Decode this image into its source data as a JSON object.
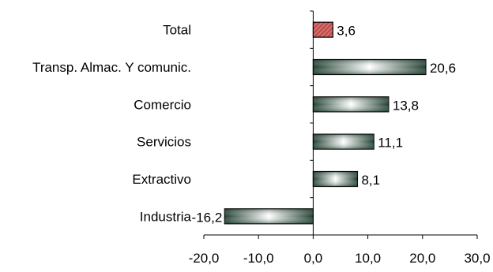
{
  "chart_data": {
    "type": "bar",
    "orientation": "horizontal",
    "categories": [
      "Total",
      "Transp. Almac. Y comunic.",
      "Comercio",
      "Servicios",
      "Extractivo",
      "Industria"
    ],
    "values": [
      3.6,
      20.6,
      13.8,
      11.1,
      8.1,
      -16.2
    ],
    "value_labels": [
      "3,6",
      "20,6",
      "13,8",
      "11,1",
      "8,1",
      "-16,2"
    ],
    "xlim": [
      -20,
      30
    ],
    "x_ticks": [
      -20,
      -10,
      0,
      10,
      20,
      30
    ],
    "x_tick_labels": [
      "-20,0",
      "-10,0",
      "0,0",
      "10,0",
      "20,0",
      "30,0"
    ],
    "title": "",
    "xlabel": "",
    "ylabel": "",
    "grid": false,
    "legend": "none",
    "colors": {
      "highlight_bar": "#c0504d",
      "bar_gradient_dark": "#1f3d2e",
      "bar_gradient_light": "#ffffff",
      "axis": "#000000"
    }
  }
}
